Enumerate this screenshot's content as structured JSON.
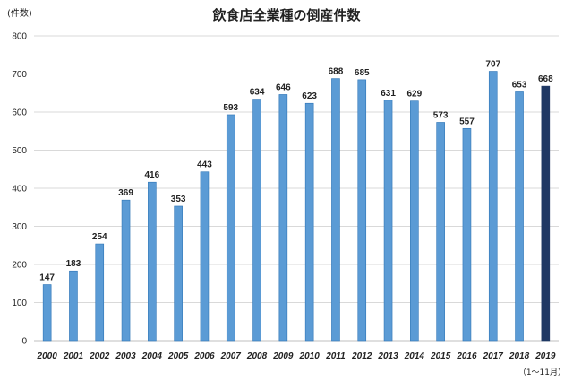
{
  "chart_data": {
    "type": "bar",
    "title": "飲食店全業種の倒産件数",
    "ylabel": "(件数)",
    "xlabel": "",
    "note": "（1～11月）",
    "ylim": [
      0,
      800
    ],
    "yticks": [
      0,
      100,
      200,
      300,
      400,
      500,
      600,
      700,
      800
    ],
    "categories": [
      "2000",
      "2001",
      "2002",
      "2003",
      "2004",
      "2005",
      "2006",
      "2007",
      "2008",
      "2009",
      "2010",
      "2011",
      "2012",
      "2013",
      "2014",
      "2015",
      "2016",
      "2017",
      "2018",
      "2019"
    ],
    "values": [
      147,
      183,
      254,
      369,
      416,
      353,
      443,
      593,
      634,
      646,
      623,
      688,
      685,
      631,
      629,
      573,
      557,
      707,
      653,
      668
    ],
    "grid": true,
    "legend": "none",
    "colors": {
      "bar": "#5b9bd5",
      "bar_border": "#2e75b6",
      "bar_highlight": "#1f3864",
      "grid": "#d9d9d9"
    },
    "highlight_category": "2019"
  }
}
